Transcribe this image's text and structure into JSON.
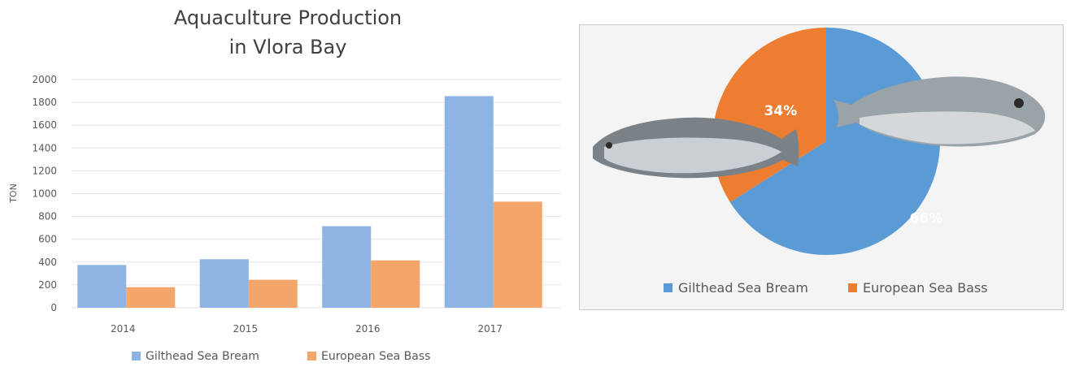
{
  "chart_data": [
    {
      "type": "bar",
      "title": "Aquaculture Production in Vlora Bay",
      "title_lines": [
        "Aquaculture Production",
        "in Vlora Bay"
      ],
      "ylabel": "TON",
      "categories": [
        "2014",
        "2015",
        "2016",
        "2017"
      ],
      "series": [
        {
          "name": "Gilthead Sea Bream",
          "values": [
            375,
            425,
            715,
            1855
          ]
        },
        {
          "name": "European Sea Bass",
          "values": [
            180,
            245,
            415,
            930
          ]
        }
      ],
      "ylim": [
        0,
        2000
      ],
      "yticks": [
        0,
        200,
        400,
        600,
        800,
        1000,
        1200,
        1400,
        1600,
        1800,
        2000
      ],
      "grid": true,
      "legend": "bottom"
    },
    {
      "type": "pie",
      "labels": [
        "Gilthead Sea Bream",
        "European Sea Bass"
      ],
      "values": [
        66,
        34
      ],
      "data_labels": [
        "66%",
        "34%"
      ],
      "legend": "bottom"
    }
  ],
  "colors": {
    "bar_bream": "#8db4e2",
    "bar_bass": "#f4a66a",
    "pie_bream": "#5b9bd5",
    "pie_bass": "#ed7d31",
    "gridline": "#e3e3e3",
    "axis_text": "#595959"
  },
  "images": {
    "fish_left": "sea-bass-photo",
    "fish_right": "sea-bream-photo"
  }
}
